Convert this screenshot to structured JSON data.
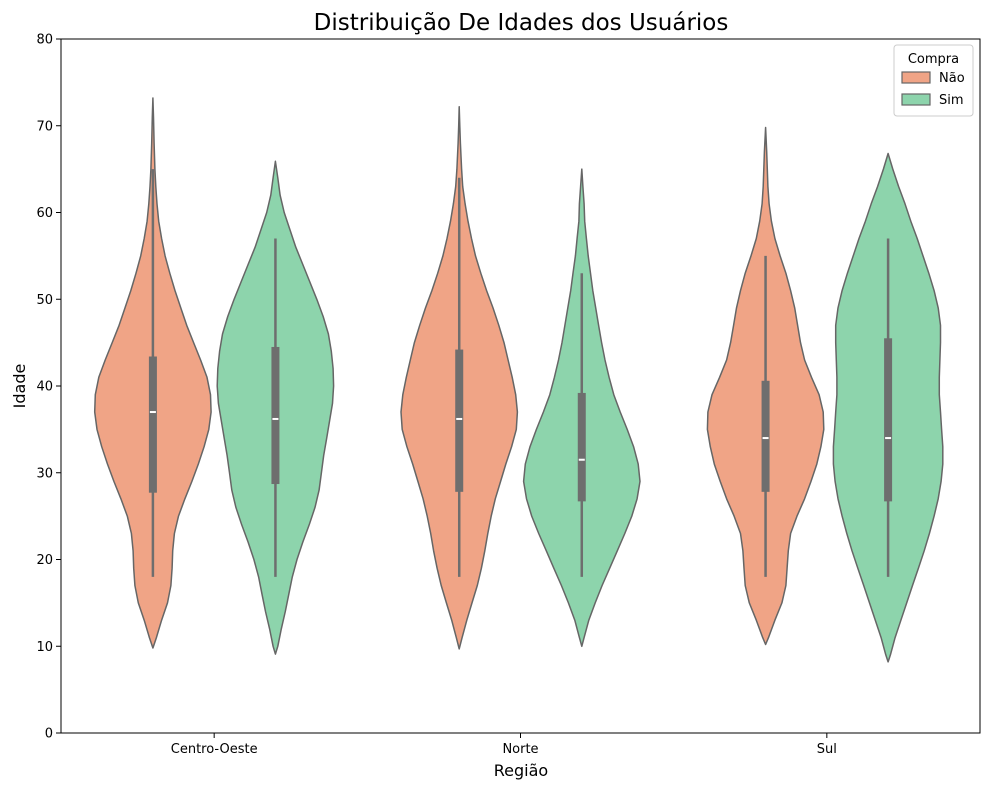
{
  "chart_data": {
    "type": "violin",
    "title": "Distribuição De Idades dos Usuários",
    "xlabel": "Região",
    "ylabel": "Idade",
    "ylim": [
      0,
      80
    ],
    "yticks": [
      0,
      10,
      20,
      30,
      40,
      50,
      60,
      70,
      80
    ],
    "categories": [
      "Centro-Oeste",
      "Norte",
      "Sul"
    ],
    "legend": {
      "title": "Compra",
      "placement": "top-right",
      "entries": [
        {
          "label": "Não",
          "color": "#f0a486"
        },
        {
          "label": "Sim",
          "color": "#8dd4ac"
        }
      ]
    },
    "colors": {
      "outline": "#666666",
      "box": "#6e6e6e",
      "median": "#ffffff"
    },
    "series": [
      {
        "name": "Não",
        "color": "#f0a486",
        "values": [
          {
            "category": "Centro-Oeste",
            "min": 18,
            "q1": 27.7,
            "median": 37,
            "q3": 43.4,
            "max": 65,
            "extent": [
              9.8,
              73.2
            ],
            "density": [
              [
                9.8,
                0
              ],
              [
                11,
                0.06
              ],
              [
                13,
                0.15
              ],
              [
                15,
                0.25
              ],
              [
                17,
                0.31
              ],
              [
                19,
                0.33
              ],
              [
                21,
                0.34
              ],
              [
                23,
                0.37
              ],
              [
                25,
                0.44
              ],
              [
                27,
                0.55
              ],
              [
                29,
                0.67
              ],
              [
                31,
                0.78
              ],
              [
                33,
                0.88
              ],
              [
                35,
                0.96
              ],
              [
                37,
                1.0
              ],
              [
                39,
                0.99
              ],
              [
                41,
                0.93
              ],
              [
                43,
                0.82
              ],
              [
                45,
                0.7
              ],
              [
                47,
                0.58
              ],
              [
                49,
                0.48
              ],
              [
                51,
                0.38
              ],
              [
                53,
                0.29
              ],
              [
                55,
                0.21
              ],
              [
                57,
                0.15
              ],
              [
                59,
                0.1
              ],
              [
                61,
                0.07
              ],
              [
                63,
                0.05
              ],
              [
                65,
                0.035
              ],
              [
                68,
                0.02
              ],
              [
                71,
                0.01
              ],
              [
                73.2,
                0
              ]
            ]
          },
          {
            "category": "Norte",
            "min": 18,
            "q1": 27.8,
            "median": 36.2,
            "q3": 44.2,
            "max": 64,
            "extent": [
              9.7,
              72.2
            ],
            "density": [
              [
                9.7,
                0
              ],
              [
                11,
                0.05
              ],
              [
                13,
                0.13
              ],
              [
                15,
                0.22
              ],
              [
                17,
                0.31
              ],
              [
                19,
                0.38
              ],
              [
                21,
                0.44
              ],
              [
                23,
                0.49
              ],
              [
                25,
                0.55
              ],
              [
                27,
                0.62
              ],
              [
                29,
                0.71
              ],
              [
                31,
                0.8
              ],
              [
                33,
                0.9
              ],
              [
                35,
                0.98
              ],
              [
                37,
                1.0
              ],
              [
                39,
                0.97
              ],
              [
                41,
                0.91
              ],
              [
                43,
                0.84
              ],
              [
                45,
                0.77
              ],
              [
                47,
                0.68
              ],
              [
                49,
                0.58
              ],
              [
                51,
                0.47
              ],
              [
                53,
                0.37
              ],
              [
                55,
                0.28
              ],
              [
                57,
                0.21
              ],
              [
                59,
                0.15
              ],
              [
                61,
                0.1
              ],
              [
                63,
                0.06
              ],
              [
                65,
                0.04
              ],
              [
                68,
                0.02
              ],
              [
                70,
                0.01
              ],
              [
                72.2,
                0
              ]
            ]
          },
          {
            "category": "Sul",
            "min": 18,
            "q1": 27.8,
            "median": 34,
            "q3": 40.6,
            "max": 55,
            "extent": [
              10.2,
              69.8
            ],
            "density": [
              [
                10.2,
                0
              ],
              [
                11,
                0.05
              ],
              [
                13,
                0.16
              ],
              [
                15,
                0.28
              ],
              [
                17,
                0.35
              ],
              [
                19,
                0.37
              ],
              [
                21,
                0.39
              ],
              [
                23,
                0.43
              ],
              [
                25,
                0.54
              ],
              [
                27,
                0.67
              ],
              [
                29,
                0.78
              ],
              [
                31,
                0.88
              ],
              [
                33,
                0.95
              ],
              [
                35,
                1.0
              ],
              [
                37,
                0.99
              ],
              [
                39,
                0.92
              ],
              [
                41,
                0.79
              ],
              [
                43,
                0.67
              ],
              [
                45,
                0.6
              ],
              [
                47,
                0.55
              ],
              [
                49,
                0.5
              ],
              [
                51,
                0.43
              ],
              [
                53,
                0.35
              ],
              [
                55,
                0.25
              ],
              [
                57,
                0.16
              ],
              [
                59,
                0.1
              ],
              [
                61,
                0.06
              ],
              [
                63,
                0.04
              ],
              [
                65,
                0.03
              ],
              [
                67,
                0.02
              ],
              [
                69.8,
                0
              ]
            ]
          }
        ]
      },
      {
        "name": "Sim",
        "color": "#8dd4ac",
        "values": [
          {
            "category": "Centro-Oeste",
            "min": 18,
            "q1": 28.7,
            "median": 36.2,
            "q3": 44.5,
            "max": 57,
            "extent": [
              9.1,
              65.9
            ],
            "density": [
              [
                9.1,
                0
              ],
              [
                10,
                0.04
              ],
              [
                12,
                0.1
              ],
              [
                14,
                0.17
              ],
              [
                16,
                0.23
              ],
              [
                18,
                0.29
              ],
              [
                20,
                0.37
              ],
              [
                22,
                0.47
              ],
              [
                24,
                0.58
              ],
              [
                26,
                0.68
              ],
              [
                28,
                0.75
              ],
              [
                30,
                0.79
              ],
              [
                32,
                0.83
              ],
              [
                34,
                0.88
              ],
              [
                36,
                0.93
              ],
              [
                38,
                0.98
              ],
              [
                40,
                1.0
              ],
              [
                42,
                0.99
              ],
              [
                44,
                0.96
              ],
              [
                46,
                0.91
              ],
              [
                48,
                0.82
              ],
              [
                50,
                0.71
              ],
              [
                52,
                0.59
              ],
              [
                54,
                0.47
              ],
              [
                56,
                0.35
              ],
              [
                58,
                0.25
              ],
              [
                60,
                0.15
              ],
              [
                62,
                0.08
              ],
              [
                64,
                0.04
              ],
              [
                65.9,
                0
              ]
            ]
          },
          {
            "category": "Norte",
            "min": 18,
            "q1": 26.7,
            "median": 31.5,
            "q3": 39.2,
            "max": 53,
            "extent": [
              10,
              65
            ],
            "density": [
              [
                10,
                0
              ],
              [
                11,
                0.04
              ],
              [
                13,
                0.12
              ],
              [
                15,
                0.23
              ],
              [
                17,
                0.35
              ],
              [
                19,
                0.48
              ],
              [
                21,
                0.61
              ],
              [
                23,
                0.74
              ],
              [
                25,
                0.86
              ],
              [
                27,
                0.95
              ],
              [
                29,
                1.0
              ],
              [
                31,
                0.97
              ],
              [
                33,
                0.89
              ],
              [
                35,
                0.78
              ],
              [
                37,
                0.66
              ],
              [
                39,
                0.55
              ],
              [
                41,
                0.47
              ],
              [
                43,
                0.4
              ],
              [
                45,
                0.34
              ],
              [
                47,
                0.29
              ],
              [
                49,
                0.24
              ],
              [
                51,
                0.19
              ],
              [
                53,
                0.15
              ],
              [
                55,
                0.11
              ],
              [
                57,
                0.08
              ],
              [
                59,
                0.05
              ],
              [
                61,
                0.04
              ],
              [
                63,
                0.02
              ],
              [
                65,
                0
              ]
            ]
          },
          {
            "category": "Sul",
            "min": 18,
            "q1": 26.7,
            "median": 34,
            "q3": 45.5,
            "max": 57,
            "extent": [
              8.2,
              66.8
            ],
            "density": [
              [
                8.2,
                0
              ],
              [
                9,
                0.04
              ],
              [
                11,
                0.12
              ],
              [
                13,
                0.22
              ],
              [
                15,
                0.32
              ],
              [
                17,
                0.42
              ],
              [
                19,
                0.52
              ],
              [
                21,
                0.62
              ],
              [
                23,
                0.71
              ],
              [
                25,
                0.79
              ],
              [
                27,
                0.86
              ],
              [
                29,
                0.91
              ],
              [
                31,
                0.94
              ],
              [
                33,
                0.94
              ],
              [
                35,
                0.92
              ],
              [
                37,
                0.9
              ],
              [
                39,
                0.88
              ],
              [
                41,
                0.88
              ],
              [
                43,
                0.89
              ],
              [
                45,
                0.9
              ],
              [
                47,
                0.9
              ],
              [
                49,
                0.86
              ],
              [
                51,
                0.79
              ],
              [
                53,
                0.7
              ],
              [
                55,
                0.6
              ],
              [
                57,
                0.5
              ],
              [
                59,
                0.39
              ],
              [
                61,
                0.29
              ],
              [
                63,
                0.18
              ],
              [
                65,
                0.08
              ],
              [
                66.8,
                0
              ]
            ]
          }
        ]
      }
    ]
  }
}
